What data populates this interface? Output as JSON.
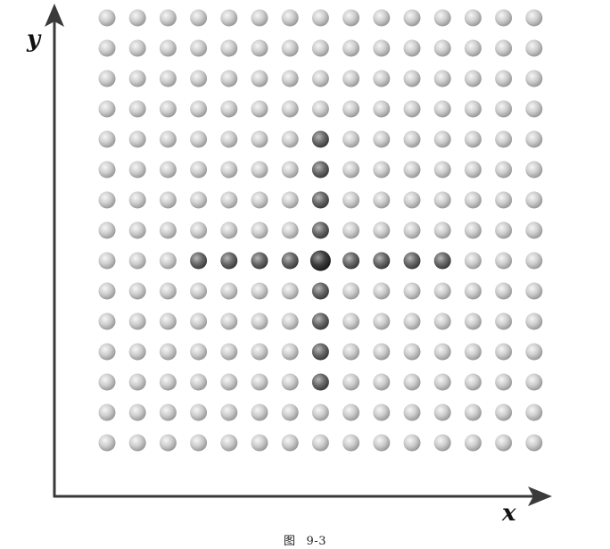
{
  "figure": {
    "caption_prefix": "图",
    "caption_number": "9-3",
    "x_axis_label": "x",
    "y_axis_label": "y"
  },
  "lattice": {
    "columns": 15,
    "rows": 15,
    "center": {
      "column": 8,
      "row": 9
    },
    "highlighted_row": {
      "row": 9,
      "from_column": 4,
      "to_column": 12
    },
    "highlighted_column": {
      "column": 8,
      "from_row": 5,
      "to_row": 13
    },
    "colors": {
      "background_atom": "#c9c9c9",
      "highlighted_atom": "#6a6a6a",
      "center_atom": "#3a3a3a",
      "axis": "#3a3a3a"
    }
  }
}
